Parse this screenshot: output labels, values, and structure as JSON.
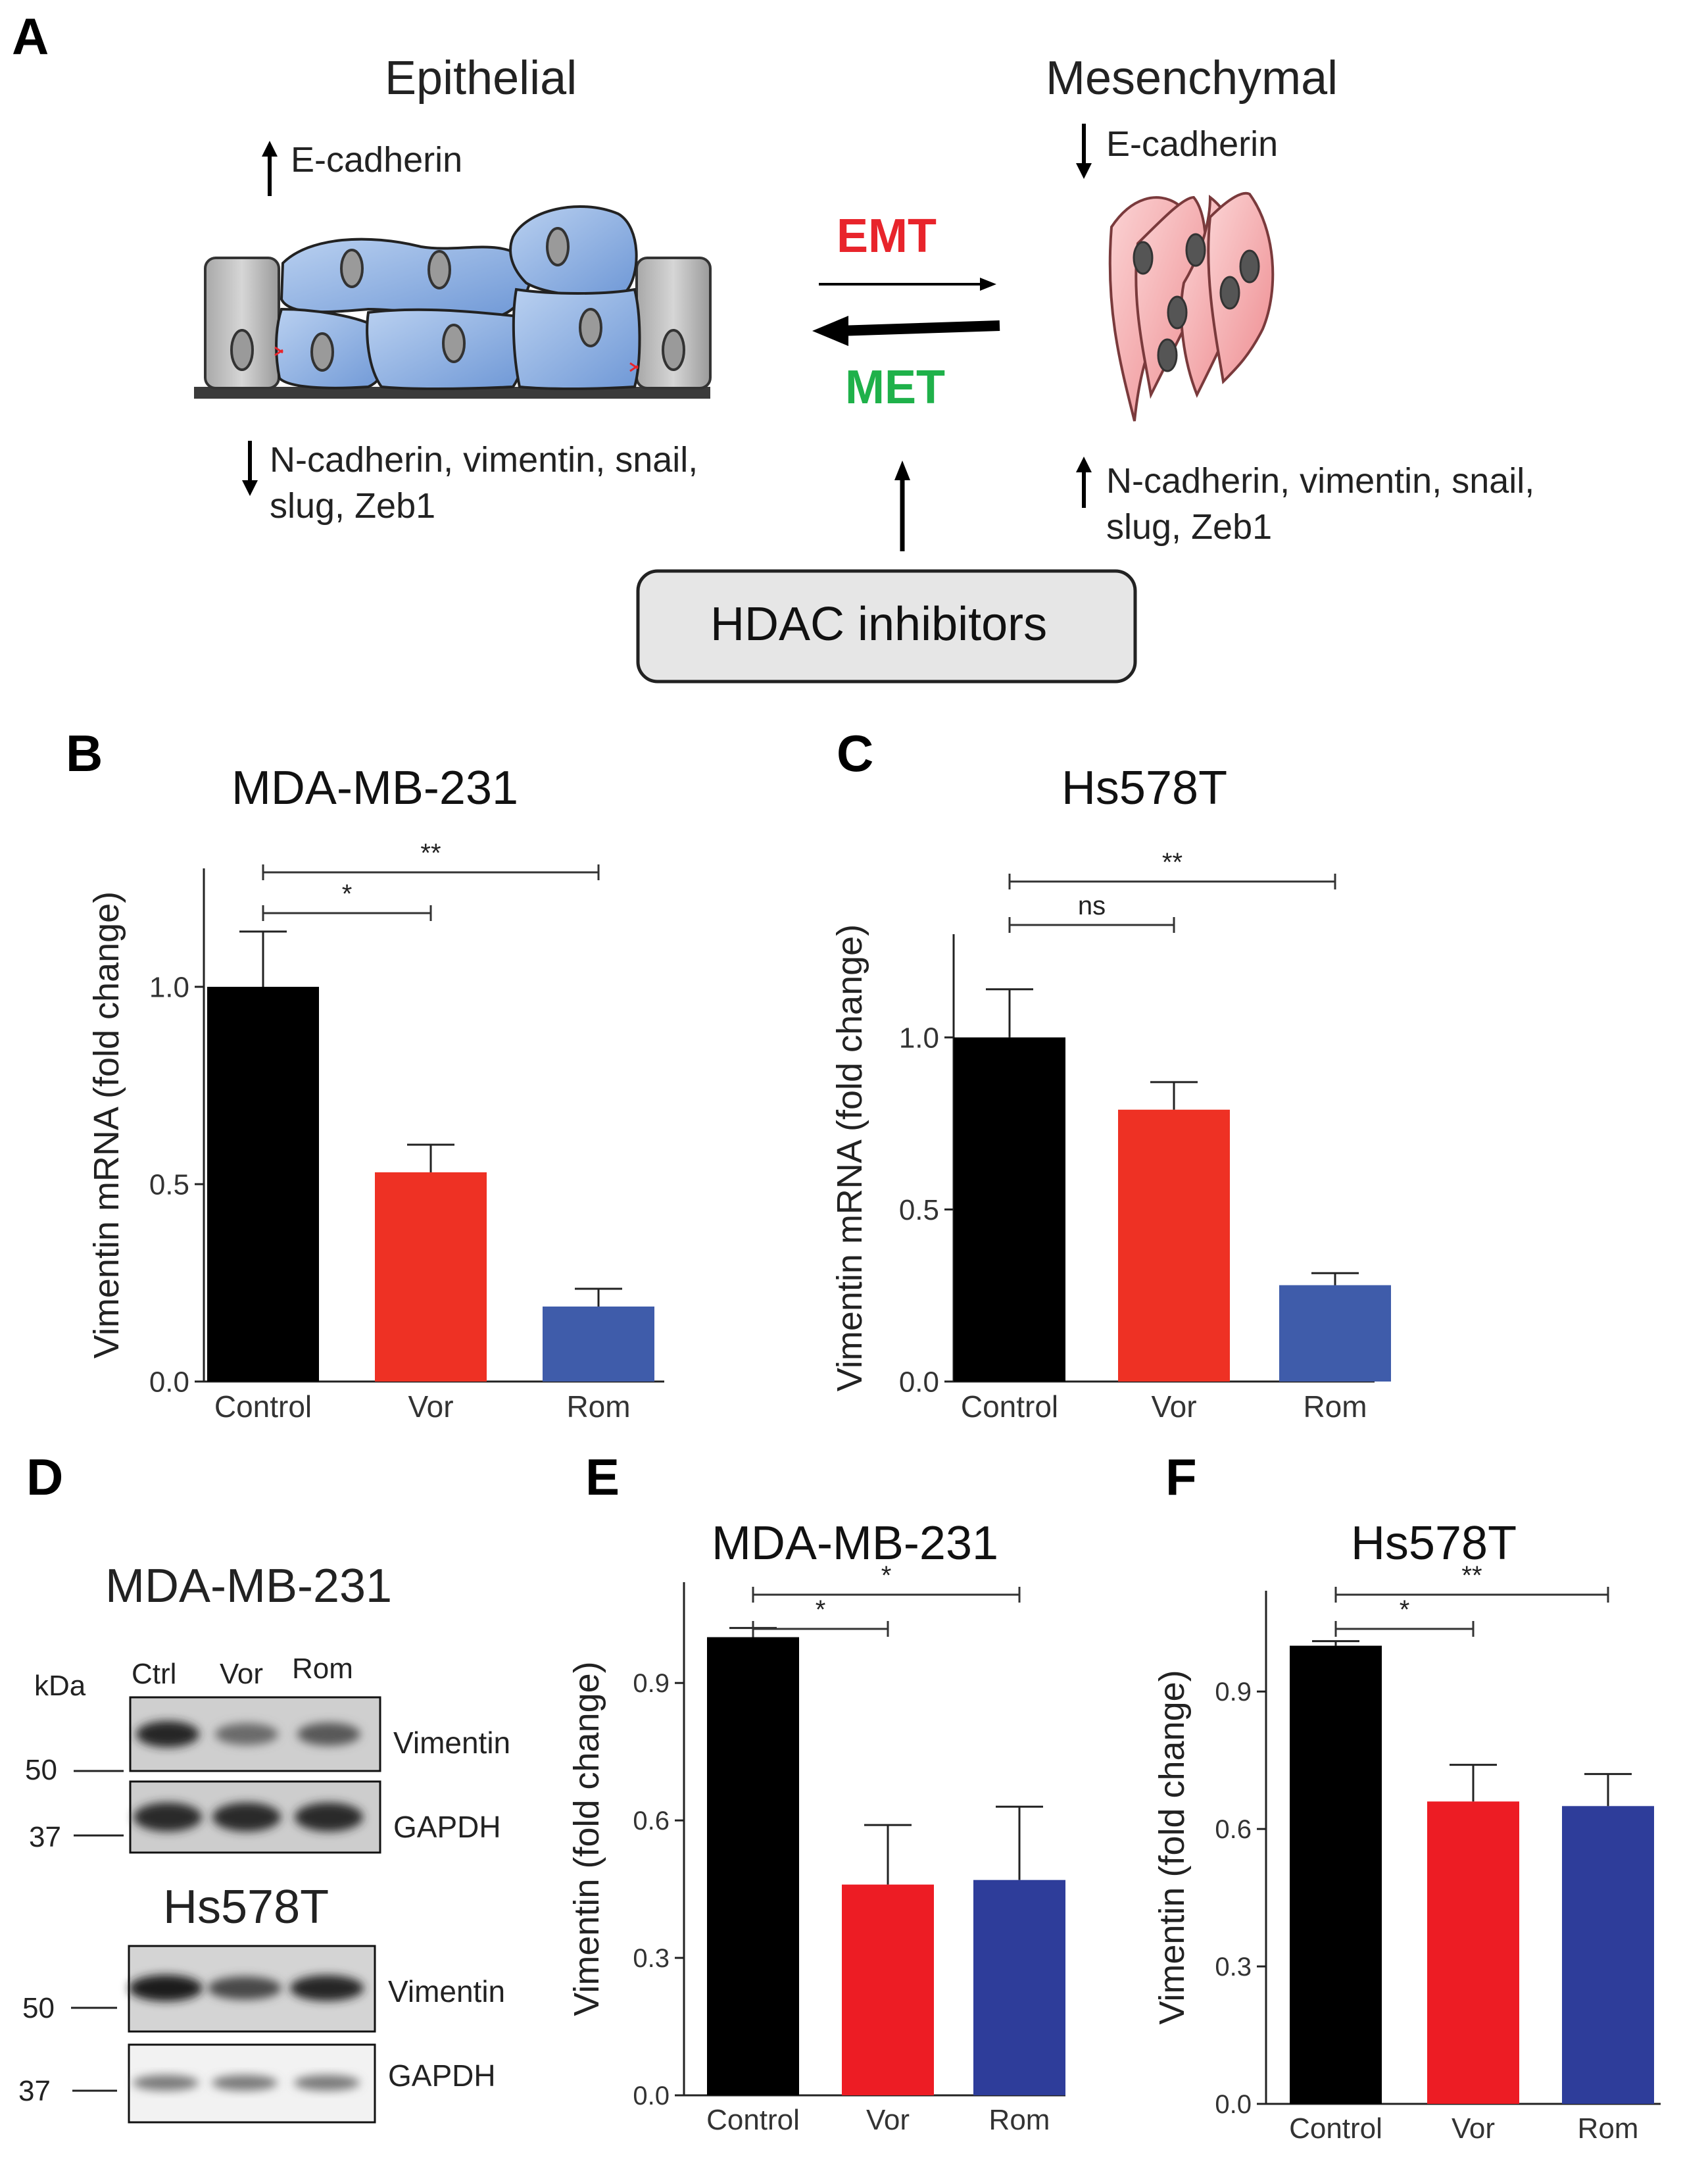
{
  "panels": {
    "A": {
      "letter": "A",
      "epithelial_title": "Epithelial",
      "mesenchymal_title": "Mesenchymal",
      "epi_up_label": "E-cadherin",
      "epi_down_label_1": "N-cadherin, vimentin, snail,",
      "epi_down_label_2": "slug, Zeb1",
      "mes_down_label": "E-cadherin",
      "mes_up_label_1": "N-cadherin, vimentin, snail,",
      "mes_up_label_2": "slug, Zeb1",
      "emt_label": "EMT",
      "met_label": "MET",
      "hdac_label": "HDAC inhibitors",
      "colors": {
        "emt": "#e8242b",
        "met": "#1fb14a",
        "epithelial_cell": "#8fb4e3",
        "mesenchymal_cell": "#f2a7a9",
        "hdac_box": "#e6e6e6"
      }
    },
    "B": {
      "letter": "B"
    },
    "C": {
      "letter": "C"
    },
    "D": {
      "letter": "D",
      "blot1_title": "MDA-MB-231",
      "blot2_title": "Hs578T",
      "kda_label": "kDa",
      "lanes": [
        "Ctrl",
        "Vor",
        "Rom"
      ],
      "markers": [
        "50",
        "37"
      ],
      "band_labels": [
        "Vimentin",
        "GAPDH"
      ],
      "blot1_vimentin_intensity": [
        1.0,
        0.45,
        0.6
      ],
      "blot2_vimentin_intensity": [
        1.0,
        0.7,
        0.95
      ]
    },
    "E": {
      "letter": "E"
    },
    "F": {
      "letter": "F"
    }
  },
  "chart_data": [
    {
      "id": "B",
      "type": "bar",
      "title": "MDA-MB-231",
      "ylabel": "Vimentin mRNA (fold change)",
      "categories": [
        "Control",
        "Vor",
        "Rom"
      ],
      "values": [
        1.0,
        0.53,
        0.19
      ],
      "errors": [
        0.14,
        0.07,
        0.045
      ],
      "colors": [
        "#000000",
        "#ee3124",
        "#3f5caa"
      ],
      "ylim": [
        0,
        1.3
      ],
      "yticks": [
        "0.0",
        "0.5",
        "1.0"
      ],
      "ytick_values": [
        0,
        0.5,
        1.0
      ],
      "significance": [
        {
          "from": 0,
          "to": 1,
          "label": "*"
        },
        {
          "from": 0,
          "to": 2,
          "label": "**"
        }
      ]
    },
    {
      "id": "C",
      "type": "bar",
      "title": "Hs578T",
      "ylabel": "Vimentin mRNA (fold change)",
      "categories": [
        "Control",
        "Vor",
        "Rom"
      ],
      "values": [
        1.0,
        0.79,
        0.28
      ],
      "errors": [
        0.14,
        0.08,
        0.035
      ],
      "colors": [
        "#000000",
        "#ee3124",
        "#3f5caa"
      ],
      "ylim": [
        0,
        1.3
      ],
      "yticks": [
        "0.0",
        "0.5",
        "1.0"
      ],
      "ytick_values": [
        0,
        0.5,
        1.0
      ],
      "significance": [
        {
          "from": 0,
          "to": 1,
          "label": "ns"
        },
        {
          "from": 0,
          "to": 2,
          "label": "**"
        }
      ]
    },
    {
      "id": "E",
      "type": "bar",
      "title": "MDA-MB-231",
      "ylabel": "Vimentin (fold change)",
      "categories": [
        "Control",
        "Vor",
        "Rom"
      ],
      "values": [
        1.0,
        0.46,
        0.47
      ],
      "errors": [
        0.02,
        0.13,
        0.16
      ],
      "colors": [
        "#000000",
        "#ed1c24",
        "#2e3d9a"
      ],
      "ylim": [
        0,
        1.12
      ],
      "yticks": [
        "0.0",
        "0.3",
        "0.6",
        "0.9"
      ],
      "ytick_values": [
        0,
        0.3,
        0.6,
        0.9
      ],
      "significance": [
        {
          "from": 0,
          "to": 1,
          "label": "*"
        },
        {
          "from": 0,
          "to": 2,
          "label": "*"
        }
      ]
    },
    {
      "id": "F",
      "type": "bar",
      "title": "Hs578T",
      "ylabel": "Vimentin (fold change)",
      "categories": [
        "Control",
        "Vor",
        "Rom"
      ],
      "values": [
        1.0,
        0.66,
        0.65
      ],
      "errors": [
        0.01,
        0.08,
        0.07
      ],
      "colors": [
        "#000000",
        "#ed1c24",
        "#2e3d9a"
      ],
      "ylim": [
        0,
        1.12
      ],
      "yticks": [
        "0.0",
        "0.3",
        "0.6",
        "0.9"
      ],
      "ytick_values": [
        0,
        0.3,
        0.6,
        0.9
      ],
      "significance": [
        {
          "from": 0,
          "to": 1,
          "label": "*"
        },
        {
          "from": 0,
          "to": 2,
          "label": "**"
        }
      ]
    }
  ]
}
